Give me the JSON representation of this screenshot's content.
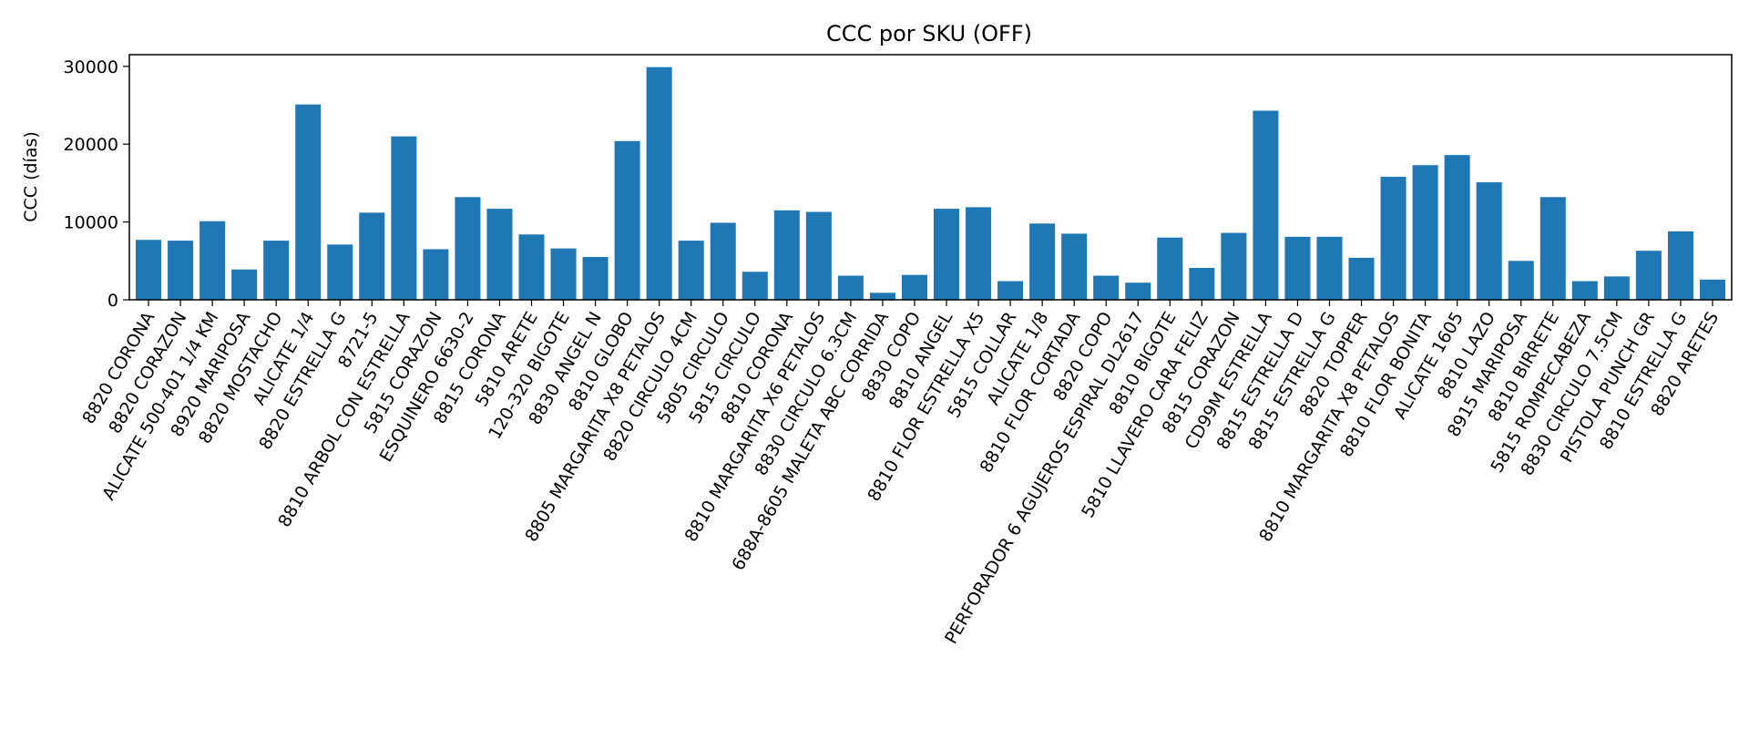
{
  "chart_data": {
    "type": "bar",
    "title": "CCC por SKU (OFF)",
    "xlabel": "",
    "ylabel": "CCC (días)",
    "ylim": [
      0,
      31500
    ],
    "yticks": [
      0,
      10000,
      20000,
      30000
    ],
    "grid": false,
    "legend": "none",
    "bar_color": "#1f77b4",
    "categories": [
      "8820 CORONA",
      "8820 CORAZON",
      "ALICATE 500-401 1/4 KM",
      "8920 MARIPOSA",
      "8820 MOSTACHO",
      "ALICATE 1/4",
      "8820 ESTRELLA G",
      "8721-5",
      "8810 ARBOL CON ESTRELLA",
      "5815 CORAZON",
      "ESQUINERO 6630-2",
      "8815 CORONA",
      "5810 ARETE",
      "120-320 BIGOTE",
      "8830 ANGEL N",
      "8810 GLOBO",
      "8805 MARGARITA X8 PETALOS",
      "8820 CIRCULO 4CM",
      "5805 CIRCULO",
      "5815 CIRCULO",
      "8810 CORONA",
      "8810 MARGARITA X6 PETALOS",
      "8830 CIRCULO 6.3CM",
      "688A-8605 MALETA ABC CORRIDA",
      "8830 COPO",
      "8810 ANGEL",
      "8810 FLOR ESTRELLA X5",
      "5815 COLLAR",
      "ALICATE 1/8",
      "8810 FLOR CORTADA",
      "8820 COPO",
      "PERFORADOR 6 AGUJEROS ESPIRAL DL2617",
      "8810 BIGOTE",
      "5810 LLAVERO CARA FELIZ",
      "8815 CORAZON",
      "CD99M ESTRELLA",
      "8815 ESTRELLA D",
      "8815 ESTRELLA G",
      "8820 TOPPER",
      "8810 MARGARITA X8 PETALOS",
      "8810 FLOR BONITA",
      "ALICATE 1605",
      "8810 LAZO",
      "8915 MARIPOSA",
      "8810 BIRRETE",
      "5815 ROMPECABEZA",
      "8830 CIRCULO 7.5CM",
      "PISTOLA PUNCH GR",
      "8810 ESTRELLA G",
      "8820 ARETES"
    ],
    "values": [
      7700,
      7600,
      10100,
      3900,
      7600,
      25100,
      7100,
      11200,
      21000,
      6500,
      13200,
      11700,
      8400,
      6600,
      5500,
      20400,
      29900,
      7600,
      9900,
      3600,
      11500,
      11300,
      3100,
      900,
      3200,
      11700,
      11900,
      2400,
      9800,
      8500,
      3100,
      2200,
      8000,
      4100,
      8600,
      24300,
      8100,
      8100,
      5400,
      15800,
      17300,
      18600,
      15100,
      5000,
      13200,
      2400,
      3000,
      6300,
      8800,
      2600
    ]
  }
}
